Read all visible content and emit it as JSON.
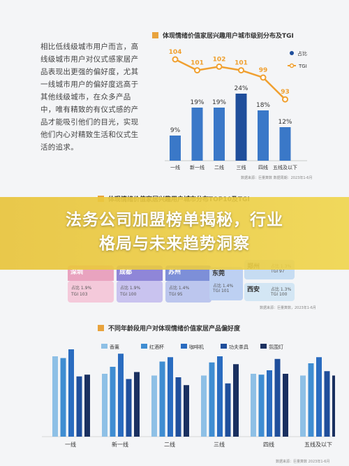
{
  "intro_text": "相比低线级城市用户而言，高线级城市用户对仪式感家居产品表现出更强的偏好度，尤其一线城市用户的偏好度远高于其他线级城市，在众多产品中，唯有精致的有仪式感的产品才能吸引他们的目光，实现他们内心对精致生活和仪式生活的追求。",
  "chart1": {
    "title": "体现情绪价值家居兴趣用户城市级别分布及TGI",
    "source": "数据来源：巨量算数  数据周期：2023年1-6月",
    "legend": {
      "share": "占比",
      "tgi": "TGI"
    }
  },
  "chart2": {
    "title": "体现情绪价值家居兴趣用户城市分布TOP10及TGI",
    "source": "数据来源：巨量算数，2023年1-6月",
    "cards": [
      {
        "name": "深圳",
        "share": "占比  1.9%",
        "tgi": "TGI  103",
        "color": "#f4c9da"
      },
      {
        "name": "成都",
        "share": "占比  1.9%",
        "tgi": "TGI  100",
        "color": "#c9c3ef"
      },
      {
        "name": "苏州",
        "share": "占比  1.4%",
        "tgi": "TGI  95",
        "color": "#bcc6ee"
      },
      {
        "name": "东莞",
        "share": "占比  1.4%",
        "tgi": "TGI  101",
        "color": "#bdd0f2"
      },
      {
        "name": "郑州",
        "share": "占比  1.3%",
        "tgi": "TGI  97",
        "color": "#c6dcf2"
      },
      {
        "name": "西安",
        "share": "占比  1.3%",
        "tgi": "TGI  100",
        "color": "#d3e6f4"
      }
    ]
  },
  "banner": {
    "line1": "法务公司加盟榜单揭秘，行业",
    "line2": "格局与未来趋势洞察"
  },
  "chart3": {
    "title": "不同年龄段用户对体现情绪价值家居产品偏好度",
    "source": "数据来源：巨量算数  2023年1-6月"
  },
  "colors": {
    "bar_dark": "#1f4e9b",
    "bar_mid": "#3a78c8",
    "line_orange": "#f0a030",
    "accent": "#e8a33d",
    "s1": "#8ec0e6",
    "s2": "#3f8dd2",
    "s3": "#2a6cc0",
    "s4": "#1f4e9b",
    "s5": "#1a3060"
  },
  "chart_data": [
    {
      "type": "bar",
      "categories": [
        "一线",
        "新一线",
        "二线",
        "三线",
        "四线",
        "五线及以下"
      ],
      "series": [
        {
          "name": "占比",
          "values": [
            9,
            19,
            19,
            24,
            18,
            12
          ],
          "labels": [
            "9%",
            "19%",
            "19%",
            "24%",
            "18%",
            "12%"
          ]
        },
        {
          "name": "TGI",
          "type": "line",
          "values": [
            104,
            101,
            102,
            101,
            99,
            93
          ]
        }
      ]
    },
    {
      "type": "bar",
      "categories": [
        "一线",
        "新一线",
        "二线",
        "三线",
        "四线",
        "五线及以下"
      ],
      "series": [
        {
          "name": "香薰",
          "values": [
            92,
            72,
            70,
            70,
            72,
            70
          ]
        },
        {
          "name": "红酒杯",
          "values": [
            90,
            80,
            86,
            85,
            71,
            84
          ]
        },
        {
          "name": "咖啡机",
          "values": [
            100,
            95,
            91,
            92,
            76,
            91
          ]
        },
        {
          "name": "功夫茶具",
          "values": [
            69,
            66,
            68,
            61,
            89,
            75
          ]
        },
        {
          "name": "氛围灯",
          "values": [
            71,
            74,
            59,
            83,
            72,
            70
          ]
        }
      ]
    }
  ]
}
